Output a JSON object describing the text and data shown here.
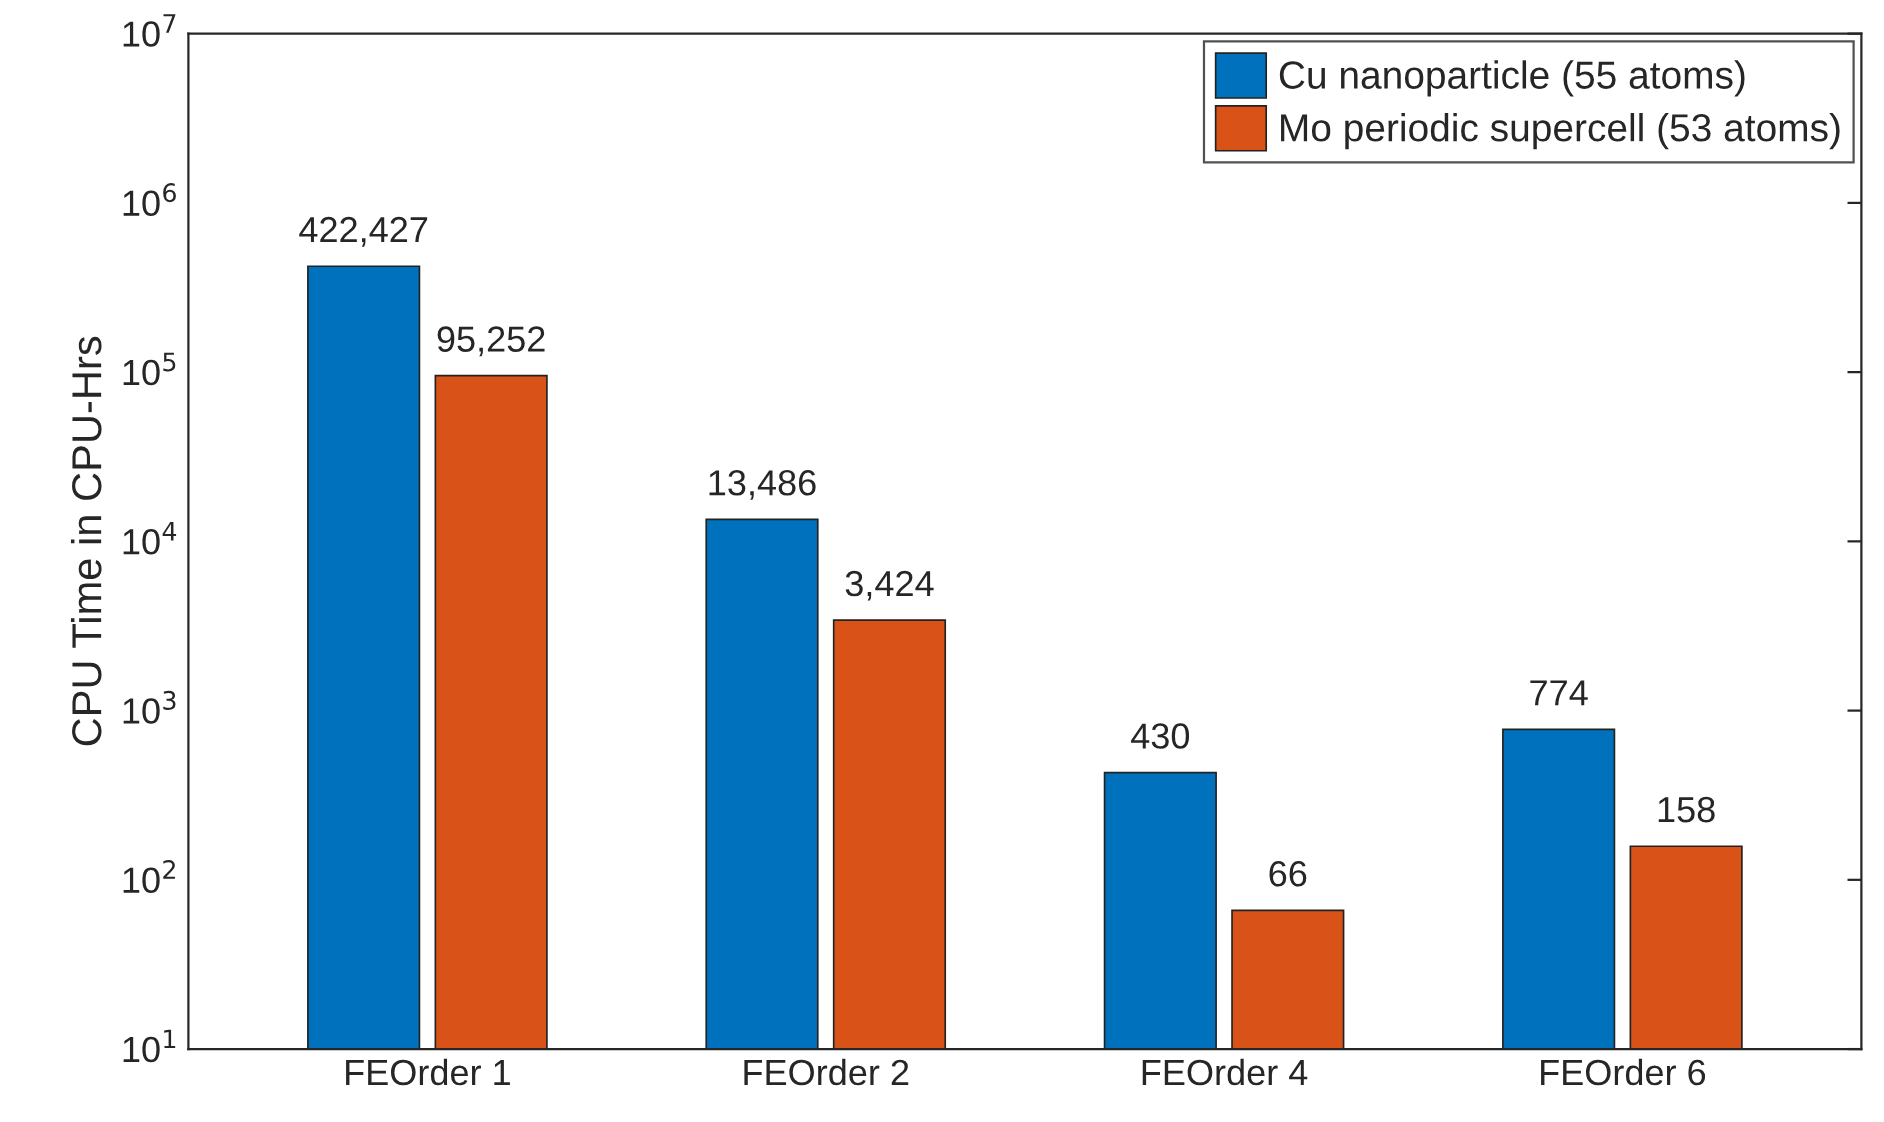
{
  "chart_data": {
    "type": "bar",
    "ylabel": "CPU Time in CPU-Hrs",
    "categories": [
      "FEOrder 1",
      "FEOrder 2",
      "FEOrder 4",
      "FEOrder 6"
    ],
    "series": [
      {
        "name": "Cu nanoparticle (55 atoms)",
        "color": "#0072bd",
        "values": [
          422427,
          13486,
          430,
          774
        ],
        "value_labels": [
          "422,427",
          "13,486",
          "430",
          "774"
        ]
      },
      {
        "name": "Mo periodic supercell (53 atoms)",
        "color": "#d95319",
        "values": [
          95252,
          3424,
          66,
          158
        ],
        "value_labels": [
          "95,252",
          "3,424",
          "66",
          "158"
        ]
      }
    ],
    "log": "y",
    "ylim": [
      10,
      10000000
    ],
    "yticks": [
      {
        "value": 10,
        "label": "10$^{1}$"
      },
      {
        "value": 100,
        "label": "10$^{2}$"
      },
      {
        "value": 1000,
        "label": "10$^{3}$"
      },
      {
        "value": 10000,
        "label": "10$^{4}$"
      },
      {
        "value": 100000,
        "label": "10$^{5}$"
      },
      {
        "value": 1000000,
        "label": "10$^{6}$"
      },
      {
        "value": 10000000,
        "label": "10$^{7}$"
      }
    ],
    "legend": "top right",
    "grid": false
  }
}
